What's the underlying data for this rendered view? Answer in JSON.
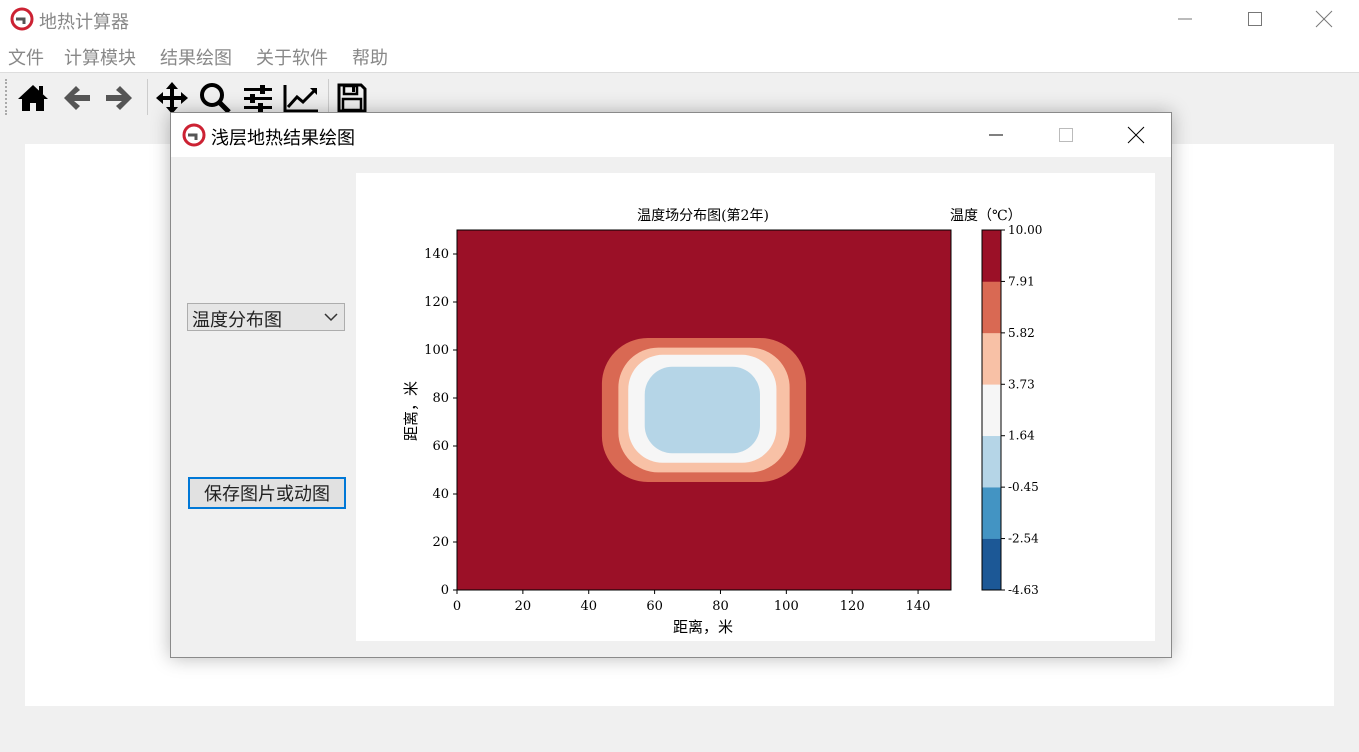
{
  "app": {
    "title": "地热计算器",
    "menu": [
      "文件",
      "计算模块",
      "结果绘图",
      "关于软件",
      "帮助"
    ],
    "toolbar_icons": [
      "home-icon",
      "back-arrow-icon",
      "forward-arrow-icon",
      "pan-icon",
      "zoom-icon",
      "sliders-icon",
      "line-chart-icon",
      "save-icon"
    ]
  },
  "dialog": {
    "title": "浅层地热结果绘图",
    "plot_type_selected": "温度分布图",
    "save_button": "保存图片或动图"
  },
  "colors": {
    "level_fills": [
      "#1c5896",
      "#4394c3",
      "#b5d5e7",
      "#f6f6f6",
      "#f8c1a6",
      "#d96953",
      "#9b1027"
    ],
    "accent_border": "#0078d7"
  },
  "chart_data": {
    "type": "heatmap",
    "subtype": "filled-contour",
    "title": "温度场分布图(第2年)",
    "xlabel": "距离，米",
    "ylabel": "距离，米",
    "xlim": [
      0,
      150
    ],
    "ylim": [
      0,
      150
    ],
    "xticks": [
      0,
      20,
      40,
      60,
      80,
      100,
      120,
      140
    ],
    "yticks": [
      0,
      20,
      40,
      60,
      80,
      100,
      120,
      140
    ],
    "colorbar": {
      "title": "温度（℃）",
      "levels": [
        -4.63,
        -2.54,
        -0.45,
        1.64,
        3.73,
        5.82,
        7.91,
        10.0
      ],
      "labels": [
        "-4.63",
        "-2.54",
        "-0.45",
        "1.64",
        "3.73",
        "5.82",
        "7.91",
        "10.00"
      ]
    },
    "background_value": 10.0,
    "contour_regions": [
      {
        "range": [
          5.82,
          7.91
        ],
        "x": [
          44,
          106
        ],
        "y": [
          45,
          105
        ]
      },
      {
        "range": [
          3.73,
          5.82
        ],
        "x": [
          49,
          101
        ],
        "y": [
          49,
          101
        ]
      },
      {
        "range": [
          1.64,
          3.73
        ],
        "x": [
          52,
          97
        ],
        "y": [
          53,
          98
        ]
      },
      {
        "range": [
          -0.45,
          1.64
        ],
        "x": [
          57,
          92
        ],
        "y": [
          57,
          93
        ]
      }
    ]
  }
}
